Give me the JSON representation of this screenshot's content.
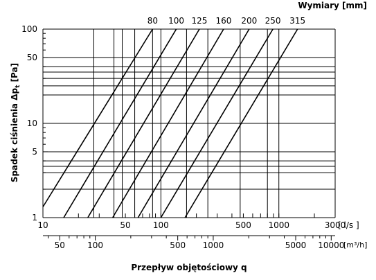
{
  "chart_data": {
    "type": "line",
    "scale": {
      "x": "log",
      "y": "log"
    },
    "title": "",
    "top_axis_title": "Wymiary [mm]",
    "ylabel": "Spadek ciśnienia Δpt [Pa]",
    "ylabel_base": "Spadek ciśnienia Δp",
    "ylabel_sub": "t",
    "ylabel_unit": " [Pa]",
    "xlabel": "Przepływ objętościowy q",
    "xlim": [
      10,
      3000
    ],
    "ylim": [
      1,
      100
    ],
    "x_unit_ls": "[ l/s ]",
    "x_unit_m3h": "[m³/h]",
    "x_ticks_ls": [
      {
        "value": 10,
        "label": "10"
      },
      {
        "value": 50,
        "label": "50"
      },
      {
        "value": 100,
        "label": "100"
      },
      {
        "value": 500,
        "label": "500"
      },
      {
        "value": 1000,
        "label": "1000"
      },
      {
        "value": 3000,
        "label": "3000"
      }
    ],
    "x_ticks_m3h": [
      {
        "value": 50,
        "label": "50"
      },
      {
        "value": 100,
        "label": "100"
      },
      {
        "value": 500,
        "label": "500"
      },
      {
        "value": 1000,
        "label": "1000"
      },
      {
        "value": 5000,
        "label": "5000"
      },
      {
        "value": 10000,
        "label": "10000"
      }
    ],
    "y_ticks": [
      {
        "value": 1,
        "label": "1"
      },
      {
        "value": 5,
        "label": "5"
      },
      {
        "value": 10,
        "label": "10"
      },
      {
        "value": 50,
        "label": "50"
      },
      {
        "value": 100,
        "label": "100"
      }
    ],
    "v_grid": [
      10,
      27,
      40,
      47,
      60,
      85,
      100,
      165,
      250,
      470,
      800,
      1000,
      3000
    ],
    "h_grid": [
      1,
      2,
      3,
      3.5,
      4,
      5,
      10,
      20,
      25,
      30,
      35,
      40,
      50,
      100
    ],
    "series": [
      {
        "name": "80",
        "points": [
          [
            10,
            1.3
          ],
          [
            85,
            100
          ]
        ]
      },
      {
        "name": "100",
        "points": [
          [
            15,
            1
          ],
          [
            135,
            100
          ]
        ]
      },
      {
        "name": "125",
        "points": [
          [
            24,
            1
          ],
          [
            212,
            100
          ]
        ]
      },
      {
        "name": "160",
        "points": [
          [
            39,
            1
          ],
          [
            340,
            100
          ]
        ]
      },
      {
        "name": "200",
        "points": [
          [
            64,
            1
          ],
          [
            560,
            100
          ]
        ]
      },
      {
        "name": "250",
        "points": [
          [
            100,
            1
          ],
          [
            890,
            100
          ]
        ]
      },
      {
        "name": "315",
        "points": [
          [
            160,
            1
          ],
          [
            1440,
            100
          ]
        ]
      }
    ]
  }
}
